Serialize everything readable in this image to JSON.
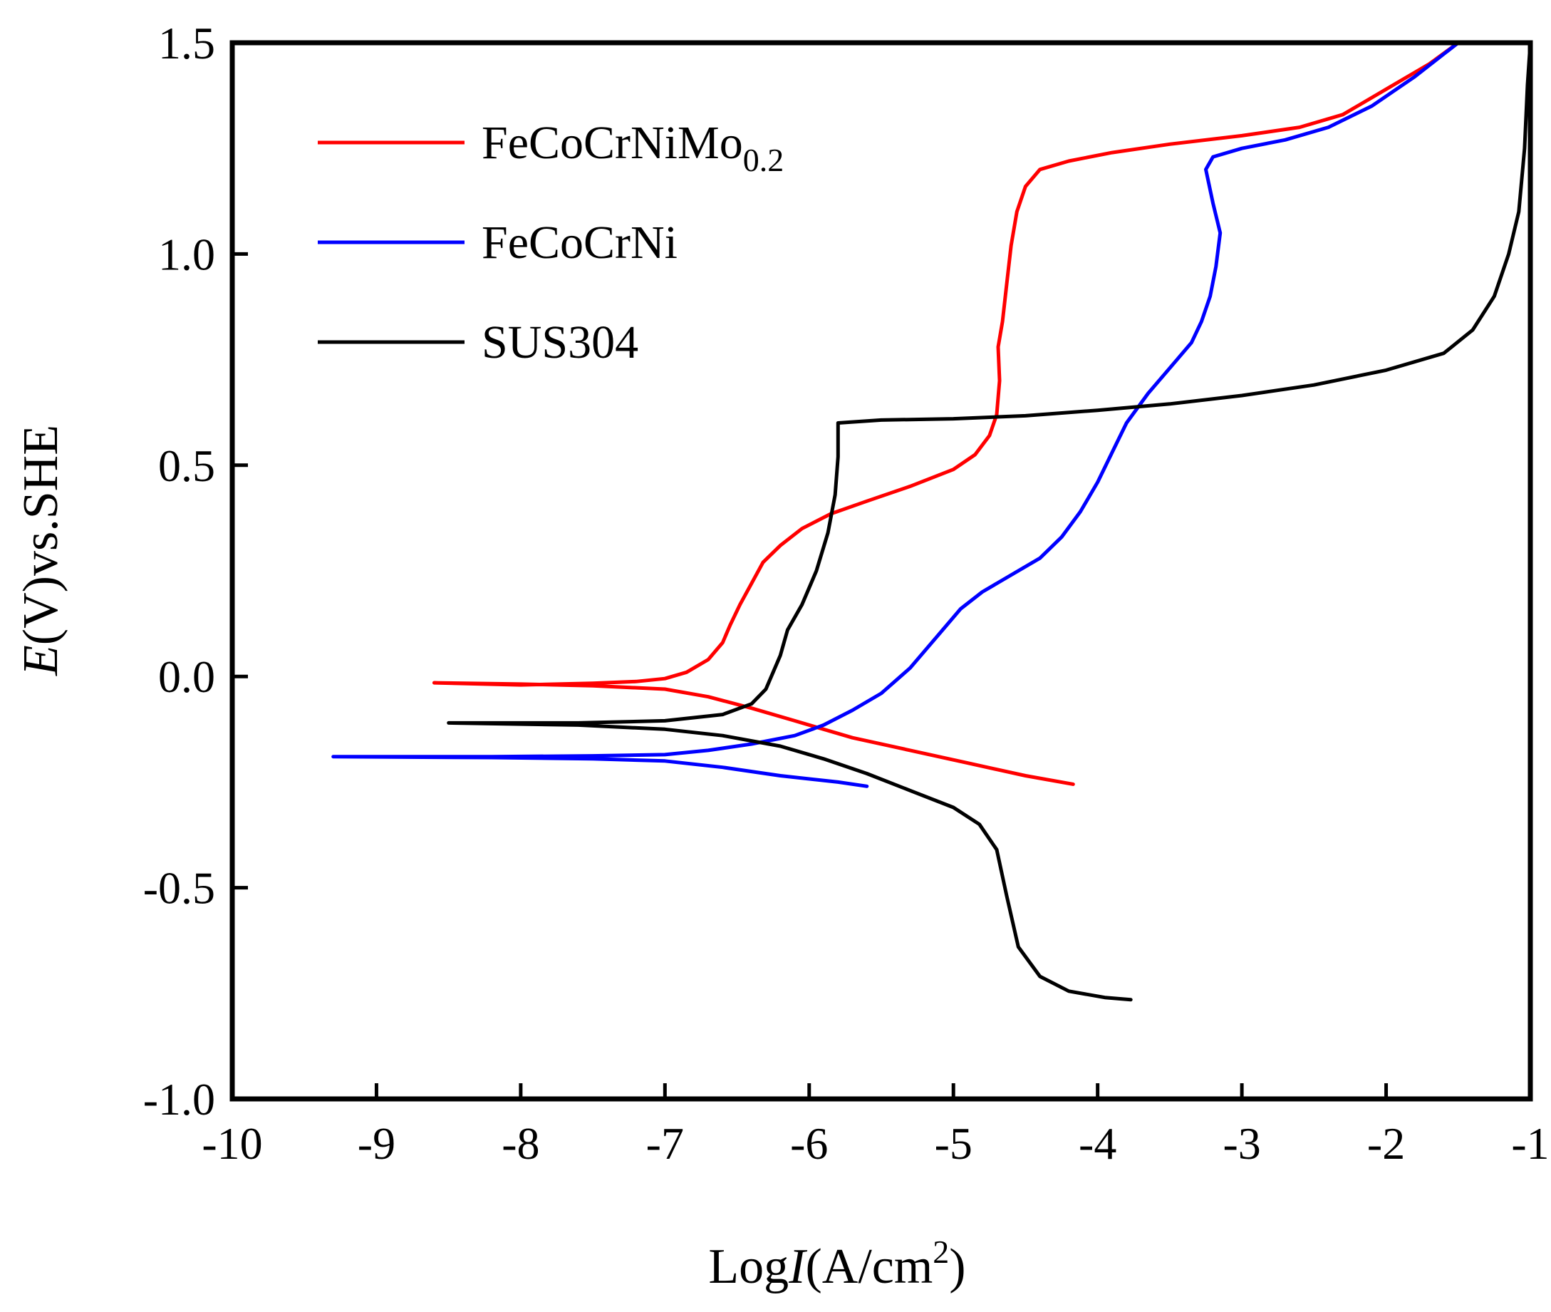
{
  "chart_data": {
    "type": "line",
    "title": "",
    "xlabel": {
      "prefix": "Log",
      "italic": "I",
      "suffix": "(A/cm",
      "sup": "2",
      "close": ")"
    },
    "ylabel": {
      "italic": "E",
      "suffix": "(V)vs.SHE"
    },
    "xlim": [
      -10,
      -1
    ],
    "ylim": [
      -1.0,
      1.5
    ],
    "x_ticks": [
      -10,
      -9,
      -8,
      -7,
      -6,
      -5,
      -4,
      -3,
      -2,
      -1
    ],
    "x_tick_labels": [
      "-10",
      "-9",
      "-8",
      "-7",
      "-6",
      "-5",
      "-4",
      "-3",
      "-2",
      "-1"
    ],
    "y_ticks": [
      -1.0,
      -0.5,
      0.0,
      0.5,
      1.0,
      1.5
    ],
    "y_tick_labels": [
      "-1.0",
      "-0.5",
      "0.0",
      "0.5",
      "1.0",
      "1.5"
    ],
    "grid": false,
    "legend_position": "top-left",
    "series": [
      {
        "name": "FeCoCrNiMo",
        "name_sub": "0.2",
        "color": "#ff0000",
        "points": [
          [
            -4.17,
            -0.255
          ],
          [
            -4.5,
            -0.235
          ],
          [
            -4.9,
            -0.205
          ],
          [
            -5.3,
            -0.175
          ],
          [
            -5.7,
            -0.145
          ],
          [
            -6.1,
            -0.105
          ],
          [
            -6.4,
            -0.075
          ],
          [
            -6.7,
            -0.048
          ],
          [
            -7.0,
            -0.03
          ],
          [
            -7.5,
            -0.022
          ],
          [
            -8.0,
            -0.018
          ],
          [
            -8.6,
            -0.015
          ],
          [
            -8.0,
            -0.02
          ],
          [
            -7.5,
            -0.016
          ],
          [
            -7.2,
            -0.012
          ],
          [
            -7.0,
            -0.005
          ],
          [
            -6.85,
            0.01
          ],
          [
            -6.7,
            0.04
          ],
          [
            -6.6,
            0.08
          ],
          [
            -6.55,
            0.12
          ],
          [
            -6.48,
            0.17
          ],
          [
            -6.4,
            0.22
          ],
          [
            -6.32,
            0.27
          ],
          [
            -6.2,
            0.31
          ],
          [
            -6.05,
            0.35
          ],
          [
            -5.85,
            0.385
          ],
          [
            -5.6,
            0.415
          ],
          [
            -5.3,
            0.45
          ],
          [
            -5.0,
            0.49
          ],
          [
            -4.85,
            0.525
          ],
          [
            -4.75,
            0.57
          ],
          [
            -4.7,
            0.62
          ],
          [
            -4.68,
            0.7
          ],
          [
            -4.69,
            0.78
          ],
          [
            -4.66,
            0.84
          ],
          [
            -4.63,
            0.93
          ],
          [
            -4.6,
            1.02
          ],
          [
            -4.56,
            1.1
          ],
          [
            -4.5,
            1.16
          ],
          [
            -4.4,
            1.2
          ],
          [
            -4.2,
            1.22
          ],
          [
            -3.9,
            1.24
          ],
          [
            -3.5,
            1.26
          ],
          [
            -3.0,
            1.28
          ],
          [
            -2.6,
            1.3
          ],
          [
            -2.3,
            1.33
          ],
          [
            -2.0,
            1.39
          ],
          [
            -1.7,
            1.45
          ],
          [
            -1.5,
            1.5
          ]
        ]
      },
      {
        "name": "FeCoCrNi",
        "name_sub": "",
        "color": "#0000ff",
        "points": [
          [
            -5.6,
            -0.26
          ],
          [
            -5.8,
            -0.25
          ],
          [
            -6.2,
            -0.235
          ],
          [
            -6.6,
            -0.215
          ],
          [
            -7.0,
            -0.2
          ],
          [
            -7.5,
            -0.195
          ],
          [
            -8.2,
            -0.192
          ],
          [
            -9.3,
            -0.19
          ],
          [
            -8.2,
            -0.19
          ],
          [
            -7.5,
            -0.188
          ],
          [
            -7.0,
            -0.185
          ],
          [
            -6.7,
            -0.175
          ],
          [
            -6.4,
            -0.16
          ],
          [
            -6.1,
            -0.14
          ],
          [
            -5.9,
            -0.115
          ],
          [
            -5.7,
            -0.08
          ],
          [
            -5.5,
            -0.04
          ],
          [
            -5.3,
            0.02
          ],
          [
            -5.1,
            0.1
          ],
          [
            -4.95,
            0.16
          ],
          [
            -4.8,
            0.2
          ],
          [
            -4.6,
            0.24
          ],
          [
            -4.4,
            0.28
          ],
          [
            -4.25,
            0.33
          ],
          [
            -4.12,
            0.39
          ],
          [
            -4.0,
            0.46
          ],
          [
            -3.9,
            0.53
          ],
          [
            -3.8,
            0.6
          ],
          [
            -3.65,
            0.67
          ],
          [
            -3.5,
            0.73
          ],
          [
            -3.35,
            0.79
          ],
          [
            -3.28,
            0.84
          ],
          [
            -3.22,
            0.9
          ],
          [
            -3.18,
            0.97
          ],
          [
            -3.15,
            1.05
          ],
          [
            -3.2,
            1.12
          ],
          [
            -3.25,
            1.2
          ],
          [
            -3.2,
            1.23
          ],
          [
            -3.0,
            1.25
          ],
          [
            -2.7,
            1.27
          ],
          [
            -2.4,
            1.3
          ],
          [
            -2.1,
            1.35
          ],
          [
            -1.8,
            1.42
          ],
          [
            -1.5,
            1.5
          ]
        ]
      },
      {
        "name": "SUS304",
        "name_sub": "",
        "color": "#000000",
        "points": [
          [
            -3.77,
            -0.765
          ],
          [
            -3.95,
            -0.76
          ],
          [
            -4.2,
            -0.745
          ],
          [
            -4.4,
            -0.71
          ],
          [
            -4.55,
            -0.64
          ],
          [
            -4.63,
            -0.52
          ],
          [
            -4.7,
            -0.41
          ],
          [
            -4.82,
            -0.35
          ],
          [
            -5.0,
            -0.31
          ],
          [
            -5.3,
            -0.27
          ],
          [
            -5.6,
            -0.23
          ],
          [
            -5.9,
            -0.195
          ],
          [
            -6.2,
            -0.165
          ],
          [
            -6.6,
            -0.14
          ],
          [
            -7.0,
            -0.125
          ],
          [
            -7.6,
            -0.115
          ],
          [
            -8.5,
            -0.11
          ],
          [
            -7.6,
            -0.11
          ],
          [
            -7.0,
            -0.105
          ],
          [
            -6.6,
            -0.09
          ],
          [
            -6.4,
            -0.065
          ],
          [
            -6.3,
            -0.03
          ],
          [
            -6.2,
            0.05
          ],
          [
            -6.15,
            0.11
          ],
          [
            -6.05,
            0.17
          ],
          [
            -5.95,
            0.25
          ],
          [
            -5.87,
            0.34
          ],
          [
            -5.82,
            0.43
          ],
          [
            -5.8,
            0.52
          ],
          [
            -5.8,
            0.6
          ],
          [
            -5.5,
            0.607
          ],
          [
            -5.0,
            0.61
          ],
          [
            -4.5,
            0.617
          ],
          [
            -4.0,
            0.63
          ],
          [
            -3.5,
            0.645
          ],
          [
            -3.0,
            0.665
          ],
          [
            -2.5,
            0.69
          ],
          [
            -2.0,
            0.725
          ],
          [
            -1.6,
            0.765
          ],
          [
            -1.4,
            0.82
          ],
          [
            -1.25,
            0.9
          ],
          [
            -1.15,
            1.0
          ],
          [
            -1.08,
            1.1
          ],
          [
            -1.04,
            1.25
          ],
          [
            -1.02,
            1.4
          ],
          [
            -1.0,
            1.5
          ]
        ]
      }
    ]
  }
}
